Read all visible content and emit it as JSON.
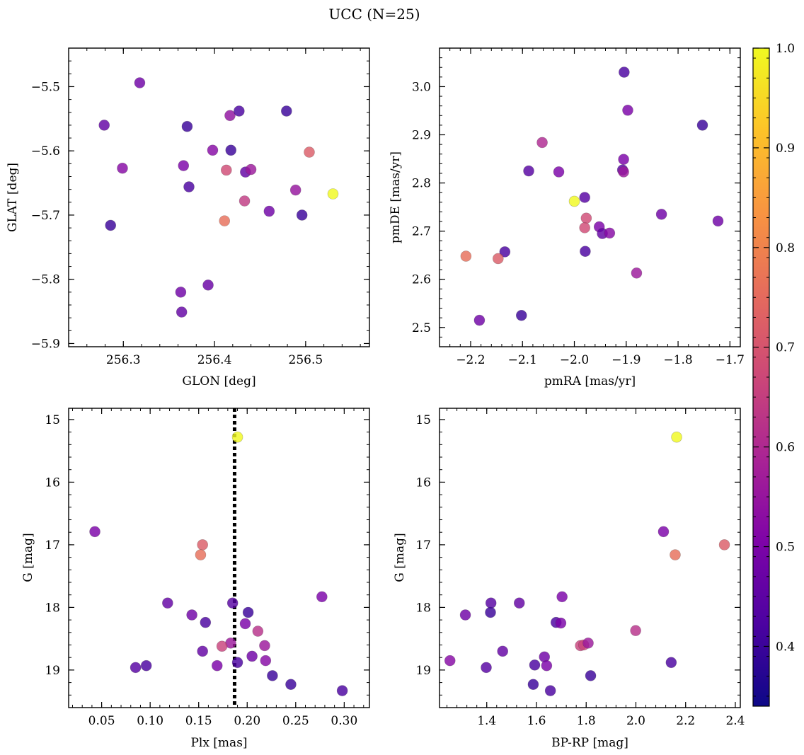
{
  "figure": {
    "title": "UCC (N=25)"
  },
  "colorbar": {
    "colormap": "plasma",
    "range": [
      0.34,
      1.0
    ],
    "ticks": [
      0.4,
      0.5,
      0.6,
      0.7,
      0.8,
      0.9,
      1.0
    ],
    "tick_labels": [
      "0.4",
      "0.5",
      "0.6",
      "0.7",
      "0.8",
      "0.9",
      "1.0"
    ]
  },
  "chart_data": [
    {
      "type": "scatter",
      "title": "",
      "xlabel": "GLON [deg]",
      "ylabel": "GLAT [deg]",
      "xlim": [
        256.24,
        256.57
      ],
      "ylim": [
        -5.905,
        -5.44
      ],
      "xticks": [
        256.3,
        256.4,
        256.5
      ],
      "xtick_labels": [
        "256.3",
        "256.4",
        "256.5"
      ],
      "yticks": [
        -5.5,
        -5.6,
        -5.7,
        -5.8,
        -5.9
      ],
      "ytick_labels": [
        "−5.5",
        "−5.6",
        "−5.7",
        "−5.8",
        "−5.9"
      ],
      "grid": false,
      "points": [
        {
          "x": 256.318,
          "y": -5.494,
          "c": 0.48
        },
        {
          "x": 256.279,
          "y": -5.56,
          "c": 0.46
        },
        {
          "x": 256.299,
          "y": -5.627,
          "c": 0.52
        },
        {
          "x": 256.286,
          "y": -5.716,
          "c": 0.4
        },
        {
          "x": 256.37,
          "y": -5.562,
          "c": 0.4
        },
        {
          "x": 256.366,
          "y": -5.623,
          "c": 0.5
        },
        {
          "x": 256.372,
          "y": -5.656,
          "c": 0.42
        },
        {
          "x": 256.398,
          "y": -5.599,
          "c": 0.52
        },
        {
          "x": 256.417,
          "y": -5.545,
          "c": 0.54
        },
        {
          "x": 256.427,
          "y": -5.538,
          "c": 0.42
        },
        {
          "x": 256.418,
          "y": -5.599,
          "c": 0.4
        },
        {
          "x": 256.413,
          "y": -5.63,
          "c": 0.68
        },
        {
          "x": 256.434,
          "y": -5.633,
          "c": 0.46
        },
        {
          "x": 256.44,
          "y": -5.629,
          "c": 0.56
        },
        {
          "x": 256.433,
          "y": -5.678,
          "c": 0.64
        },
        {
          "x": 256.411,
          "y": -5.709,
          "c": 0.76
        },
        {
          "x": 256.46,
          "y": -5.694,
          "c": 0.48
        },
        {
          "x": 256.479,
          "y": -5.538,
          "c": 0.4
        },
        {
          "x": 256.504,
          "y": -5.602,
          "c": 0.72
        },
        {
          "x": 256.489,
          "y": -5.661,
          "c": 0.55
        },
        {
          "x": 256.496,
          "y": -5.7,
          "c": 0.4
        },
        {
          "x": 256.53,
          "y": -5.667,
          "c": 1.0
        },
        {
          "x": 256.363,
          "y": -5.82,
          "c": 0.48
        },
        {
          "x": 256.364,
          "y": -5.851,
          "c": 0.46
        },
        {
          "x": 256.393,
          "y": -5.809,
          "c": 0.47
        }
      ]
    },
    {
      "type": "scatter",
      "title": "",
      "xlabel": "pmRA [mas/yr]",
      "ylabel": "pmDE [mas/yr]",
      "xlim": [
        -2.26,
        -1.68
      ],
      "ylim": [
        2.46,
        3.08
      ],
      "xticks": [
        -2.2,
        -2.1,
        -2.0,
        -1.9,
        -1.8,
        -1.7
      ],
      "xtick_labels": [
        "−2.2",
        "−2.1",
        "−2.0",
        "−1.9",
        "−1.8",
        "−1.7"
      ],
      "yticks": [
        2.5,
        2.6,
        2.7,
        2.8,
        2.9,
        3.0
      ],
      "ytick_labels": [
        "2.5",
        "2.6",
        "2.7",
        "2.8",
        "2.9",
        "3.0"
      ],
      "grid": false,
      "points": [
        {
          "x": -1.904,
          "y": 3.03,
          "c": 0.42
        },
        {
          "x": -1.897,
          "y": 2.951,
          "c": 0.5
        },
        {
          "x": -1.753,
          "y": 2.92,
          "c": 0.4
        },
        {
          "x": -2.062,
          "y": 2.884,
          "c": 0.6
        },
        {
          "x": -1.905,
          "y": 2.849,
          "c": 0.5
        },
        {
          "x": -2.088,
          "y": 2.825,
          "c": 0.44
        },
        {
          "x": -2.03,
          "y": 2.823,
          "c": 0.5
        },
        {
          "x": -1.907,
          "y": 2.827,
          "c": 0.44
        },
        {
          "x": -1.905,
          "y": 2.823,
          "c": 0.56
        },
        {
          "x": -1.98,
          "y": 2.77,
          "c": 0.44
        },
        {
          "x": -2.0,
          "y": 2.762,
          "c": 1.0
        },
        {
          "x": -1.977,
          "y": 2.727,
          "c": 0.68
        },
        {
          "x": -1.98,
          "y": 2.707,
          "c": 0.68
        },
        {
          "x": -1.952,
          "y": 2.709,
          "c": 0.5
        },
        {
          "x": -1.946,
          "y": 2.695,
          "c": 0.46
        },
        {
          "x": -1.932,
          "y": 2.696,
          "c": 0.52
        },
        {
          "x": -1.832,
          "y": 2.735,
          "c": 0.48
        },
        {
          "x": -1.723,
          "y": 2.721,
          "c": 0.48
        },
        {
          "x": -2.134,
          "y": 2.657,
          "c": 0.42
        },
        {
          "x": -1.979,
          "y": 2.658,
          "c": 0.42
        },
        {
          "x": -2.209,
          "y": 2.648,
          "c": 0.76
        },
        {
          "x": -2.147,
          "y": 2.643,
          "c": 0.72
        },
        {
          "x": -1.88,
          "y": 2.613,
          "c": 0.56
        },
        {
          "x": -2.183,
          "y": 2.515,
          "c": 0.48
        },
        {
          "x": -2.102,
          "y": 2.525,
          "c": 0.4
        }
      ]
    },
    {
      "type": "scatter",
      "title": "",
      "xlabel": "Plx [mas]",
      "ylabel": "G [mag]",
      "xlim": [
        0.016,
        0.326
      ],
      "ylim": [
        19.6,
        14.82
      ],
      "xticks": [
        0.05,
        0.1,
        0.15,
        0.2,
        0.25,
        0.3
      ],
      "xtick_labels": [
        "0.05",
        "0.10",
        "0.15",
        "0.20",
        "0.25",
        "0.30"
      ],
      "yticks": [
        15,
        16,
        17,
        18,
        19
      ],
      "ytick_labels": [
        "15",
        "16",
        "17",
        "18",
        "19"
      ],
      "grid": false,
      "vline": {
        "x": 0.187,
        "style": "dotted"
      },
      "points": [
        {
          "x": 0.19,
          "y": 15.28,
          "c": 1.0
        },
        {
          "x": 0.043,
          "y": 16.79,
          "c": 0.5
        },
        {
          "x": 0.154,
          "y": 17.0,
          "c": 0.72
        },
        {
          "x": 0.152,
          "y": 17.16,
          "c": 0.76
        },
        {
          "x": 0.118,
          "y": 17.93,
          "c": 0.46
        },
        {
          "x": 0.277,
          "y": 17.83,
          "c": 0.5
        },
        {
          "x": 0.185,
          "y": 17.93,
          "c": 0.44
        },
        {
          "x": 0.201,
          "y": 18.08,
          "c": 0.4
        },
        {
          "x": 0.143,
          "y": 18.12,
          "c": 0.48
        },
        {
          "x": 0.157,
          "y": 18.24,
          "c": 0.42
        },
        {
          "x": 0.198,
          "y": 18.26,
          "c": 0.5
        },
        {
          "x": 0.211,
          "y": 18.38,
          "c": 0.62
        },
        {
          "x": 0.183,
          "y": 18.57,
          "c": 0.56
        },
        {
          "x": 0.174,
          "y": 18.62,
          "c": 0.66
        },
        {
          "x": 0.218,
          "y": 18.61,
          "c": 0.56
        },
        {
          "x": 0.154,
          "y": 18.7,
          "c": 0.46
        },
        {
          "x": 0.205,
          "y": 18.78,
          "c": 0.48
        },
        {
          "x": 0.219,
          "y": 18.85,
          "c": 0.52
        },
        {
          "x": 0.19,
          "y": 18.88,
          "c": 0.42
        },
        {
          "x": 0.169,
          "y": 18.93,
          "c": 0.5
        },
        {
          "x": 0.096,
          "y": 18.93,
          "c": 0.42
        },
        {
          "x": 0.085,
          "y": 18.96,
          "c": 0.44
        },
        {
          "x": 0.226,
          "y": 19.09,
          "c": 0.4
        },
        {
          "x": 0.245,
          "y": 19.23,
          "c": 0.4
        },
        {
          "x": 0.298,
          "y": 19.33,
          "c": 0.42
        }
      ]
    },
    {
      "type": "scatter",
      "title": "",
      "xlabel": "BP-RP [mag]",
      "ylabel": "G [mag]",
      "xlim": [
        1.21,
        2.42
      ],
      "ylim": [
        19.6,
        14.82
      ],
      "xticks": [
        1.4,
        1.6,
        1.8,
        2.0,
        2.2,
        2.4
      ],
      "xtick_labels": [
        "1.4",
        "1.6",
        "1.8",
        "2.0",
        "2.2",
        "2.4"
      ],
      "yticks": [
        15,
        16,
        17,
        18,
        19
      ],
      "ytick_labels": [
        "15",
        "16",
        "17",
        "18",
        "19"
      ],
      "grid": false,
      "points": [
        {
          "x": 2.164,
          "y": 15.28,
          "c": 1.0
        },
        {
          "x": 2.111,
          "y": 16.79,
          "c": 0.5
        },
        {
          "x": 2.158,
          "y": 17.16,
          "c": 0.76
        },
        {
          "x": 2.356,
          "y": 17.0,
          "c": 0.72
        },
        {
          "x": 1.703,
          "y": 17.83,
          "c": 0.5
        },
        {
          "x": 1.531,
          "y": 17.93,
          "c": 0.46
        },
        {
          "x": 1.417,
          "y": 17.93,
          "c": 0.44
        },
        {
          "x": 1.415,
          "y": 18.08,
          "c": 0.4
        },
        {
          "x": 1.314,
          "y": 18.12,
          "c": 0.48
        },
        {
          "x": 1.679,
          "y": 18.24,
          "c": 0.42
        },
        {
          "x": 1.698,
          "y": 18.25,
          "c": 0.5
        },
        {
          "x": 1.999,
          "y": 18.37,
          "c": 0.62
        },
        {
          "x": 1.777,
          "y": 18.61,
          "c": 0.66
        },
        {
          "x": 1.79,
          "y": 18.6,
          "c": 0.66
        },
        {
          "x": 1.808,
          "y": 18.57,
          "c": 0.56
        },
        {
          "x": 1.464,
          "y": 18.7,
          "c": 0.46
        },
        {
          "x": 1.632,
          "y": 18.79,
          "c": 0.48
        },
        {
          "x": 1.252,
          "y": 18.85,
          "c": 0.52
        },
        {
          "x": 2.142,
          "y": 18.88,
          "c": 0.42
        },
        {
          "x": 1.641,
          "y": 18.93,
          "c": 0.5
        },
        {
          "x": 1.593,
          "y": 18.92,
          "c": 0.42
        },
        {
          "x": 1.398,
          "y": 18.96,
          "c": 0.44
        },
        {
          "x": 1.818,
          "y": 19.09,
          "c": 0.4
        },
        {
          "x": 1.587,
          "y": 19.23,
          "c": 0.4
        },
        {
          "x": 1.656,
          "y": 19.33,
          "c": 0.42
        }
      ]
    }
  ]
}
